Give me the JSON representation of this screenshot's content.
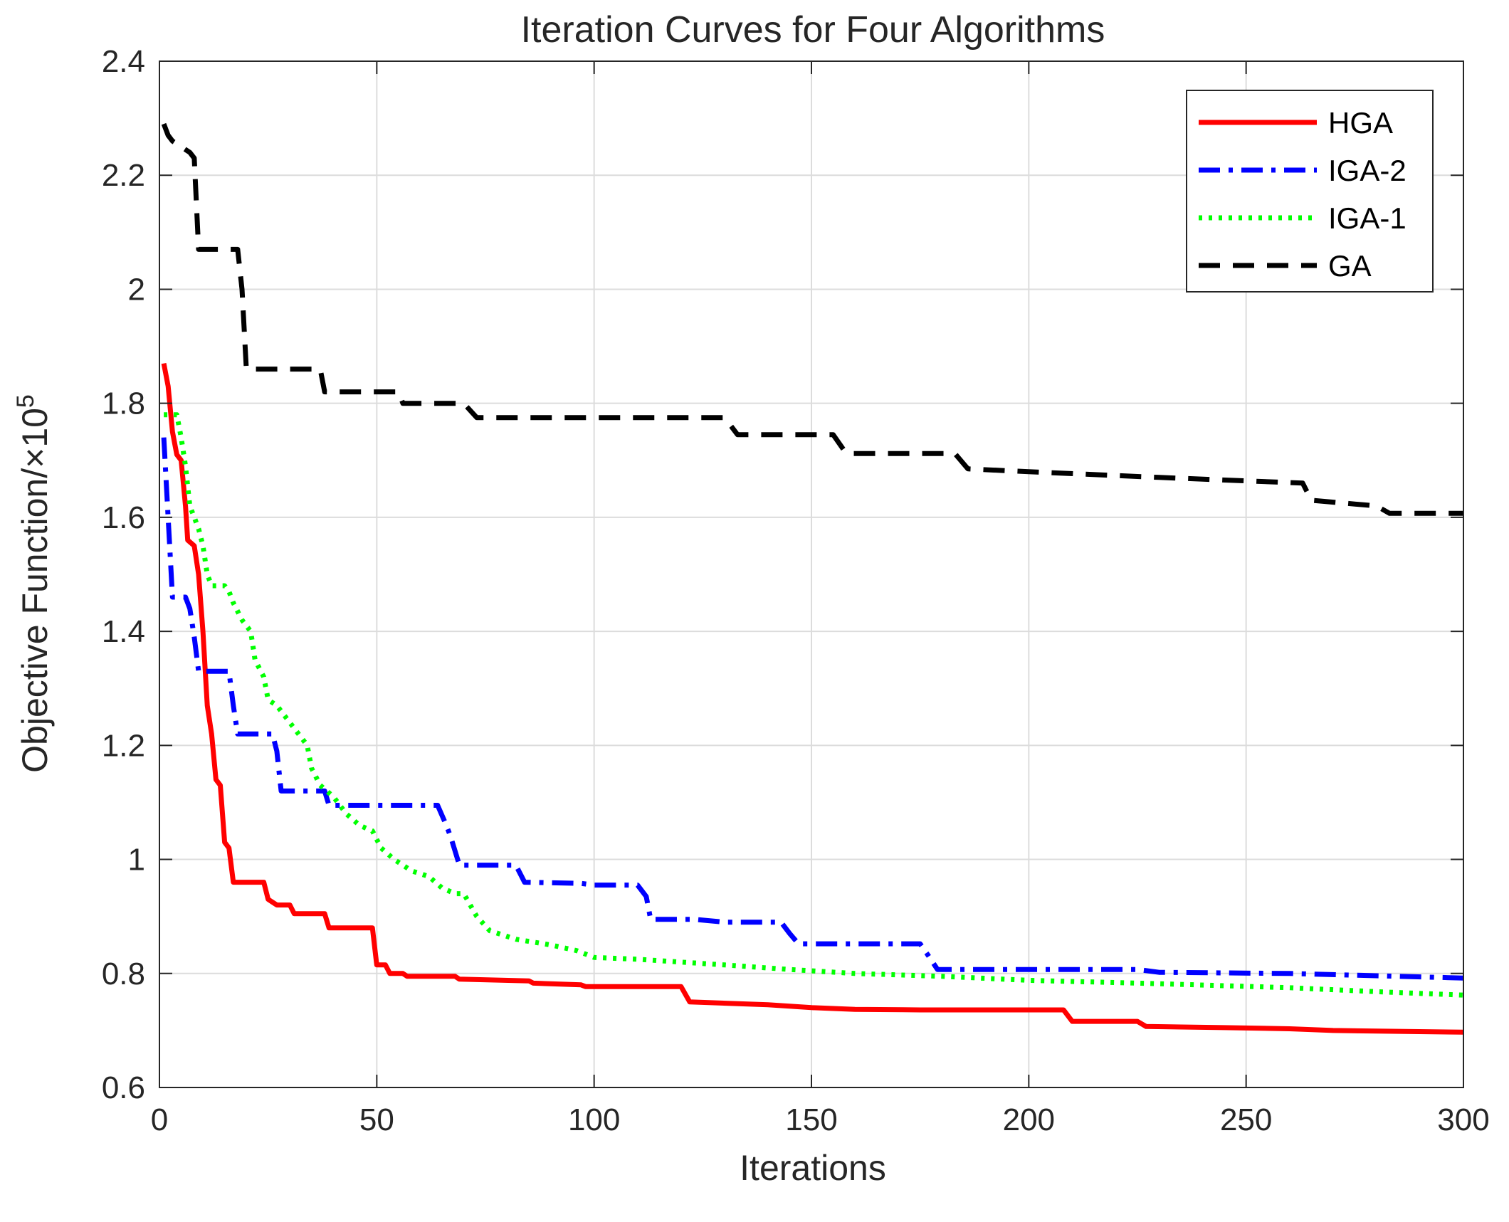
{
  "chart_data": {
    "type": "line",
    "title": "Iteration Curves for Four Algorithms",
    "xlabel": "Iterations",
    "ylabel": "Objective Function/×10",
    "ylabel_superscript": "5",
    "xlim": [
      0,
      300
    ],
    "ylim": [
      0.6,
      2.4
    ],
    "xticks": [
      0,
      50,
      100,
      150,
      200,
      250,
      300
    ],
    "yticks": [
      0.6,
      0.8,
      1,
      1.2,
      1.4,
      1.6,
      1.8,
      2,
      2.2,
      2.4
    ],
    "xtick_labels": [
      "0",
      "50",
      "100",
      "150",
      "200",
      "250",
      "300"
    ],
    "ytick_labels": [
      "0.6",
      "0.8",
      "1",
      "1.2",
      "1.4",
      "1.6",
      "1.8",
      "2",
      "2.2",
      "2.4"
    ],
    "grid": true,
    "legend_position": "top-right",
    "series": [
      {
        "name": "HGA",
        "color": "#ff0000",
        "style": "solid",
        "points": [
          [
            1,
            1.87
          ],
          [
            2,
            1.83
          ],
          [
            3,
            1.75
          ],
          [
            4,
            1.71
          ],
          [
            5,
            1.7
          ],
          [
            6,
            1.62
          ],
          [
            6.5,
            1.56
          ],
          [
            8,
            1.55
          ],
          [
            9,
            1.5
          ],
          [
            10,
            1.4
          ],
          [
            11,
            1.27
          ],
          [
            12,
            1.22
          ],
          [
            13,
            1.14
          ],
          [
            14,
            1.13
          ],
          [
            15,
            1.03
          ],
          [
            16,
            1.02
          ],
          [
            17,
            0.96
          ],
          [
            24,
            0.96
          ],
          [
            25,
            0.93
          ],
          [
            27,
            0.92
          ],
          [
            30,
            0.92
          ],
          [
            31,
            0.905
          ],
          [
            38,
            0.905
          ],
          [
            39,
            0.88
          ],
          [
            49,
            0.88
          ],
          [
            50,
            0.815
          ],
          [
            52,
            0.815
          ],
          [
            53,
            0.8
          ],
          [
            56,
            0.8
          ],
          [
            57,
            0.795
          ],
          [
            68,
            0.795
          ],
          [
            69,
            0.79
          ],
          [
            85,
            0.787
          ],
          [
            86,
            0.783
          ],
          [
            97,
            0.78
          ],
          [
            98,
            0.777
          ],
          [
            120,
            0.777
          ],
          [
            122,
            0.75
          ],
          [
            140,
            0.745
          ],
          [
            150,
            0.74
          ],
          [
            160,
            0.737
          ],
          [
            175,
            0.736
          ],
          [
            208,
            0.736
          ],
          [
            210,
            0.716
          ],
          [
            225,
            0.716
          ],
          [
            227,
            0.707
          ],
          [
            245,
            0.705
          ],
          [
            260,
            0.703
          ],
          [
            270,
            0.7
          ],
          [
            300,
            0.697
          ]
        ]
      },
      {
        "name": "IGA-2",
        "color": "#0000ff",
        "style": "dashdot",
        "points": [
          [
            1,
            1.74
          ],
          [
            2,
            1.6
          ],
          [
            3,
            1.46
          ],
          [
            6,
            1.46
          ],
          [
            7,
            1.44
          ],
          [
            8,
            1.39
          ],
          [
            9,
            1.33
          ],
          [
            16,
            1.33
          ],
          [
            17,
            1.27
          ],
          [
            18,
            1.22
          ],
          [
            26,
            1.22
          ],
          [
            27,
            1.19
          ],
          [
            28,
            1.12
          ],
          [
            38,
            1.12
          ],
          [
            39,
            1.095
          ],
          [
            64,
            1.095
          ],
          [
            66,
            1.06
          ],
          [
            67,
            1.04
          ],
          [
            69,
            0.99
          ],
          [
            82,
            0.99
          ],
          [
            84,
            0.96
          ],
          [
            97,
            0.958
          ],
          [
            100,
            0.955
          ],
          [
            110,
            0.955
          ],
          [
            112,
            0.935
          ],
          [
            113,
            0.895
          ],
          [
            123,
            0.895
          ],
          [
            130,
            0.89
          ],
          [
            143,
            0.89
          ],
          [
            145,
            0.87
          ],
          [
            147,
            0.852
          ],
          [
            175,
            0.852
          ],
          [
            177,
            0.83
          ],
          [
            179,
            0.807
          ],
          [
            200,
            0.807
          ],
          [
            225,
            0.807
          ],
          [
            230,
            0.802
          ],
          [
            260,
            0.8
          ],
          [
            280,
            0.796
          ],
          [
            300,
            0.792
          ]
        ]
      },
      {
        "name": "IGA-1",
        "color": "#00ff00",
        "style": "dotted",
        "points": [
          [
            1,
            1.78
          ],
          [
            4,
            1.78
          ],
          [
            5,
            1.74
          ],
          [
            6,
            1.69
          ],
          [
            7,
            1.62
          ],
          [
            8,
            1.6
          ],
          [
            9,
            1.58
          ],
          [
            10,
            1.55
          ],
          [
            11,
            1.5
          ],
          [
            12,
            1.48
          ],
          [
            15,
            1.48
          ],
          [
            16,
            1.47
          ],
          [
            17,
            1.45
          ],
          [
            19,
            1.42
          ],
          [
            21,
            1.4
          ],
          [
            22,
            1.35
          ],
          [
            24,
            1.32
          ],
          [
            25,
            1.28
          ],
          [
            27,
            1.27
          ],
          [
            29,
            1.25
          ],
          [
            31,
            1.23
          ],
          [
            34,
            1.2
          ],
          [
            35,
            1.16
          ],
          [
            37,
            1.13
          ],
          [
            40,
            1.11
          ],
          [
            43,
            1.08
          ],
          [
            46,
            1.06
          ],
          [
            49,
            1.05
          ],
          [
            51,
            1.02
          ],
          [
            54,
            1.0
          ],
          [
            58,
            0.98
          ],
          [
            62,
            0.97
          ],
          [
            65,
            0.95
          ],
          [
            68,
            0.94
          ],
          [
            70,
            0.94
          ],
          [
            73,
            0.9
          ],
          [
            76,
            0.875
          ],
          [
            82,
            0.86
          ],
          [
            90,
            0.85
          ],
          [
            96,
            0.84
          ],
          [
            100,
            0.828
          ],
          [
            110,
            0.825
          ],
          [
            130,
            0.815
          ],
          [
            145,
            0.807
          ],
          [
            160,
            0.8
          ],
          [
            180,
            0.795
          ],
          [
            200,
            0.788
          ],
          [
            230,
            0.782
          ],
          [
            260,
            0.775
          ],
          [
            280,
            0.768
          ],
          [
            300,
            0.762
          ]
        ]
      },
      {
        "name": "GA",
        "color": "#000000",
        "style": "dashed",
        "points": [
          [
            1,
            2.29
          ],
          [
            2,
            2.27
          ],
          [
            3,
            2.26
          ],
          [
            7,
            2.24
          ],
          [
            8,
            2.23
          ],
          [
            9,
            2.07
          ],
          [
            18,
            2.07
          ],
          [
            19,
            2.0
          ],
          [
            20,
            1.86
          ],
          [
            37,
            1.86
          ],
          [
            38,
            1.82
          ],
          [
            55,
            1.82
          ],
          [
            56,
            1.8
          ],
          [
            70,
            1.8
          ],
          [
            73,
            1.775
          ],
          [
            130,
            1.775
          ],
          [
            133,
            1.745
          ],
          [
            155,
            1.745
          ],
          [
            158,
            1.712
          ],
          [
            183,
            1.712
          ],
          [
            186,
            1.685
          ],
          [
            200,
            1.68
          ],
          [
            230,
            1.67
          ],
          [
            263,
            1.66
          ],
          [
            265,
            1.63
          ],
          [
            280,
            1.62
          ],
          [
            283,
            1.607
          ],
          [
            300,
            1.607
          ]
        ]
      }
    ]
  }
}
